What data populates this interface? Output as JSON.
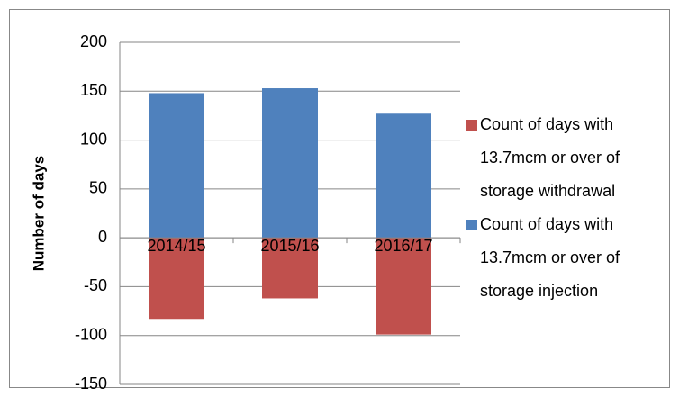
{
  "chart_data": {
    "type": "bar",
    "y_axis_label": "Number of days",
    "categories": [
      "2014/15",
      "2015/16",
      "2016/17"
    ],
    "series": [
      {
        "name": "Count of days with 13.7mcm or over of storage withdrawal",
        "color": "#c0504d",
        "values": [
          -83,
          -62,
          -99
        ]
      },
      {
        "name": "Count of days with 13.7mcm or over of storage injection",
        "color": "#4f81bd",
        "values": [
          148,
          153,
          127
        ]
      }
    ],
    "ylim": [
      -150,
      200
    ],
    "yticks": [
      -150,
      -100,
      -50,
      0,
      50,
      100,
      150,
      200
    ],
    "grid": true,
    "legend": "right"
  }
}
